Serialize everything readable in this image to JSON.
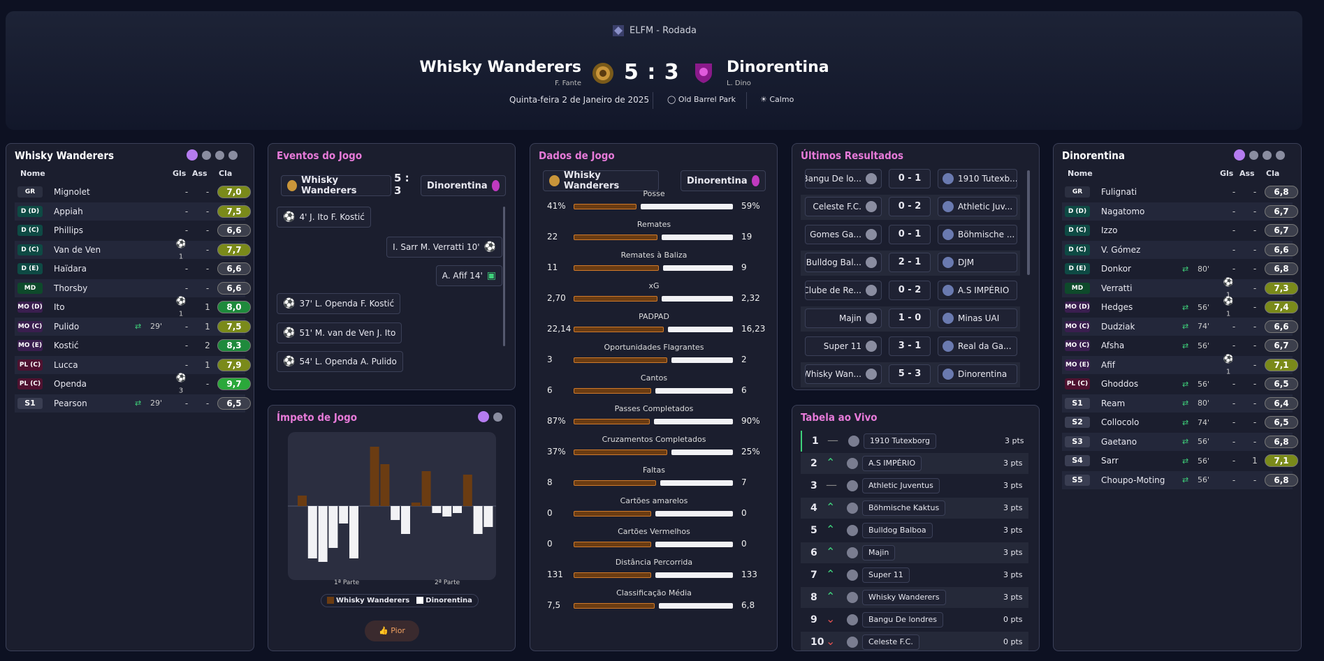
{
  "header": {
    "competition": "ELFM - Rodada",
    "home_team": "Whisky Wanderers",
    "home_coach": "F. Fante",
    "away_team": "Dinorentina",
    "away_coach": "L. Dino",
    "score": "5 : 3",
    "date": "Quinta-feira 2 de Janeiro de 2025",
    "stadium": "Old Barrel Park",
    "weather": "Calmo"
  },
  "home_panel": {
    "title": "Whisky Wanderers",
    "col_name": "Nome",
    "col_goals": "Gls",
    "col_assists": "Ass",
    "col_rating": "Cla",
    "players": [
      {
        "pos": "GR",
        "name": "Mignolet",
        "gls": "-",
        "ass": "-",
        "rating": "7,0",
        "sub": ""
      },
      {
        "pos": "D (D)",
        "name": "Appiah",
        "gls": "-",
        "ass": "-",
        "rating": "7,5",
        "sub": ""
      },
      {
        "pos": "D (C)",
        "name": "Phillips",
        "gls": "-",
        "ass": "-",
        "rating": "6,6",
        "sub": ""
      },
      {
        "pos": "D (C)",
        "name": "Van de Ven",
        "gls": "1",
        "ass": "-",
        "rating": "7,7",
        "sub": ""
      },
      {
        "pos": "D (E)",
        "name": "Haïdara",
        "gls": "-",
        "ass": "-",
        "rating": "6,6",
        "sub": ""
      },
      {
        "pos": "MD",
        "name": "Thorsby",
        "gls": "-",
        "ass": "-",
        "rating": "6,6",
        "sub": ""
      },
      {
        "pos": "MO (D)",
        "name": "Ito",
        "gls": "1",
        "ass": "1",
        "rating": "8,0",
        "sub": ""
      },
      {
        "pos": "MO (C)",
        "name": "Pulido",
        "gls": "-",
        "ass": "1",
        "rating": "7,5",
        "sub": "29'"
      },
      {
        "pos": "MO (E)",
        "name": "Kostić",
        "gls": "-",
        "ass": "2",
        "rating": "8,3",
        "sub": ""
      },
      {
        "pos": "PL (C)",
        "name": "Lucca",
        "gls": "-",
        "ass": "1",
        "rating": "7,9",
        "sub": ""
      },
      {
        "pos": "PL (C)",
        "name": "Openda",
        "gls": "3",
        "ass": "-",
        "rating": "9,7",
        "sub": ""
      },
      {
        "pos": "S1",
        "name": "Pearson",
        "gls": "-",
        "ass": "-",
        "rating": "6,5",
        "sub": "29'"
      }
    ]
  },
  "away_panel": {
    "title": "Dinorentina",
    "col_name": "Nome",
    "col_goals": "Gls",
    "col_assists": "Ass",
    "col_rating": "Cla",
    "players": [
      {
        "pos": "GR",
        "name": "Fulignati",
        "gls": "-",
        "ass": "-",
        "rating": "6,8",
        "sub": ""
      },
      {
        "pos": "D (D)",
        "name": "Nagatomo",
        "gls": "-",
        "ass": "-",
        "rating": "6,7",
        "sub": ""
      },
      {
        "pos": "D (C)",
        "name": "Izzo",
        "gls": "-",
        "ass": "-",
        "rating": "6,7",
        "sub": ""
      },
      {
        "pos": "D (C)",
        "name": "V. Gómez",
        "gls": "-",
        "ass": "-",
        "rating": "6,6",
        "sub": ""
      },
      {
        "pos": "D (E)",
        "name": "Donkor",
        "gls": "-",
        "ass": "-",
        "rating": "6,8",
        "sub": "80'"
      },
      {
        "pos": "MD",
        "name": "Verratti",
        "gls": "1",
        "ass": "-",
        "rating": "7,3",
        "sub": ""
      },
      {
        "pos": "MO (D)",
        "name": "Hedges",
        "gls": "1",
        "ass": "-",
        "rating": "7,4",
        "sub": "56'"
      },
      {
        "pos": "MO (C)",
        "name": "Dudziak",
        "gls": "-",
        "ass": "-",
        "rating": "6,6",
        "sub": "74'"
      },
      {
        "pos": "MO (C)",
        "name": "Afsha",
        "gls": "-",
        "ass": "-",
        "rating": "6,7",
        "sub": "56'"
      },
      {
        "pos": "MO (E)",
        "name": "Afif",
        "gls": "1",
        "ass": "-",
        "rating": "7,1",
        "sub": ""
      },
      {
        "pos": "PL (C)",
        "name": "Ghoddos",
        "gls": "-",
        "ass": "-",
        "rating": "6,5",
        "sub": "56'"
      },
      {
        "pos": "S1",
        "name": "Ream",
        "gls": "-",
        "ass": "-",
        "rating": "6,4",
        "sub": "80'"
      },
      {
        "pos": "S2",
        "name": "Collocolo",
        "gls": "-",
        "ass": "-",
        "rating": "6,5",
        "sub": "74'"
      },
      {
        "pos": "S3",
        "name": "Gaetano",
        "gls": "-",
        "ass": "-",
        "rating": "6,8",
        "sub": "56'"
      },
      {
        "pos": "S4",
        "name": "Sarr",
        "gls": "-",
        "ass": "1",
        "rating": "7,1",
        "sub": "56'"
      },
      {
        "pos": "S5",
        "name": "Choupo-Moting",
        "gls": "-",
        "ass": "-",
        "rating": "6,8",
        "sub": "56'"
      }
    ]
  },
  "events": {
    "title": "Eventos do Jogo",
    "home": "Whisky Wanderers",
    "away": "Dinorentina",
    "score": "5 : 3",
    "items": [
      {
        "text": "4'  J. Ito  F. Kostić",
        "side": "home",
        "type": "goal"
      },
      {
        "text": "I. Sarr  M. Verratti  10'",
        "side": "away",
        "type": "goal"
      },
      {
        "text": "A. Afif  14'",
        "side": "away",
        "type": "var"
      },
      {
        "text": "37'  L. Openda  F. Kostić",
        "side": "home",
        "type": "goal"
      },
      {
        "text": "51'  M. van de Ven  J. Ito",
        "side": "home",
        "type": "goal"
      },
      {
        "text": "54'  L. Openda  A. Pulido",
        "side": "home",
        "type": "goal"
      }
    ]
  },
  "momentum": {
    "title": "Ímpeto de Jogo",
    "half1": "1ª Parte",
    "half2": "2ª Parte",
    "legend_home": "Whisky Wanderers",
    "legend_away": "Dinorentina",
    "button": "Pior"
  },
  "stats": {
    "title": "Dados de Jogo",
    "home": "Whisky Wanderers",
    "away": "Dinorentina",
    "rows": [
      {
        "label": "Posse",
        "home": "41%",
        "away": "59%",
        "hf": 0.41
      },
      {
        "label": "Remates",
        "home": "22",
        "away": "19",
        "hf": 0.54
      },
      {
        "label": "Remates à Baliza",
        "home": "11",
        "away": "9",
        "hf": 0.55
      },
      {
        "label": "xG",
        "home": "2,70",
        "away": "2,32",
        "hf": 0.54
      },
      {
        "label": "PADPAD",
        "home": "22,14",
        "away": "16,23",
        "hf": 0.58
      },
      {
        "label": "Oportunidades Flagrantes",
        "home": "3",
        "away": "2",
        "hf": 0.6
      },
      {
        "label": "Cantos",
        "home": "6",
        "away": "6",
        "hf": 0.5
      },
      {
        "label": "Passes Completados",
        "home": "87%",
        "away": "90%",
        "hf": 0.49
      },
      {
        "label": "Cruzamentos Completados",
        "home": "37%",
        "away": "25%",
        "hf": 0.6
      },
      {
        "label": "Faltas",
        "home": "8",
        "away": "7",
        "hf": 0.53
      },
      {
        "label": "Cartões amarelos",
        "home": "0",
        "away": "0",
        "hf": 0.5
      },
      {
        "label": "Cartões Vermelhos",
        "home": "0",
        "away": "0",
        "hf": 0.5
      },
      {
        "label": "Distância Percorrida",
        "home": "131",
        "away": "133",
        "hf": 0.5
      },
      {
        "label": "Classificação Média",
        "home": "7,5",
        "away": "6,8",
        "hf": 0.52
      }
    ]
  },
  "results": {
    "title": "Últimos Resultados",
    "rows": [
      {
        "home": "Bangu De lo...",
        "score": "0 - 1",
        "away": "1910 Tutexb..."
      },
      {
        "home": "Celeste F.C.",
        "score": "0 - 2",
        "away": "Athletic Juv..."
      },
      {
        "home": "Gomes Ga...",
        "score": "0 - 1",
        "away": "Böhmische ..."
      },
      {
        "home": "Bulldog Bal...",
        "score": "2 - 1",
        "away": "DJM"
      },
      {
        "home": "Clube de Re...",
        "score": "0 - 2",
        "away": "A.S IMPÉRIO"
      },
      {
        "home": "Majin",
        "score": "1 - 0",
        "away": "Minas UAI"
      },
      {
        "home": "Super 11",
        "score": "3 - 1",
        "away": "Real da Ga..."
      },
      {
        "home": "Whisky Wan...",
        "score": "5 - 3",
        "away": "Dinorentina"
      }
    ]
  },
  "table": {
    "title": "Tabela ao Vivo",
    "rows": [
      {
        "pos": "1",
        "trend": "—",
        "team": "1910 Tutexborg",
        "pts": "3 pts"
      },
      {
        "pos": "2",
        "trend": "^",
        "team": "A.S IMPÉRIO",
        "pts": "3 pts"
      },
      {
        "pos": "3",
        "trend": "—",
        "team": "Athletic Juventus",
        "pts": "3 pts"
      },
      {
        "pos": "4",
        "trend": "^",
        "team": "Böhmische Kaktus",
        "pts": "3 pts"
      },
      {
        "pos": "5",
        "trend": "^",
        "team": "Bulldog Balboa",
        "pts": "3 pts"
      },
      {
        "pos": "6",
        "trend": "^",
        "team": "Majin",
        "pts": "3 pts"
      },
      {
        "pos": "7",
        "trend": "^",
        "team": "Super 11",
        "pts": "3 pts"
      },
      {
        "pos": "8",
        "trend": "^",
        "team": "Whisky Wanderers",
        "pts": "3 pts"
      },
      {
        "pos": "9",
        "trend": "v",
        "team": "Bangu De londres",
        "pts": "0 pts"
      },
      {
        "pos": "10",
        "trend": "v",
        "team": "Celeste F.C.",
        "pts": "0 pts"
      }
    ]
  },
  "colors": {
    "accent": "#b57cf0",
    "pink": "#e67ad8",
    "home_bar": "#6b3c12",
    "away_bar": "#f2f2f5"
  },
  "chart_data": {
    "type": "bar",
    "title": "Ímpeto de Jogo",
    "series": [
      {
        "name": "Whisky Wanderers",
        "values": [
          0.15,
          0,
          0,
          0,
          0,
          0,
          0,
          0.85,
          0.6,
          0,
          0,
          0.05,
          0.5,
          0,
          0,
          0,
          0.45,
          0,
          0
        ]
      },
      {
        "name": "Dinorentina",
        "values": [
          0,
          -0.75,
          -0.8,
          -0.6,
          -0.25,
          -0.75,
          0,
          0,
          0,
          -0.2,
          -0.4,
          0,
          0,
          -0.1,
          -0.15,
          -0.1,
          0,
          -0.4,
          -0.3
        ]
      }
    ],
    "ylim": [
      -1,
      1
    ]
  }
}
